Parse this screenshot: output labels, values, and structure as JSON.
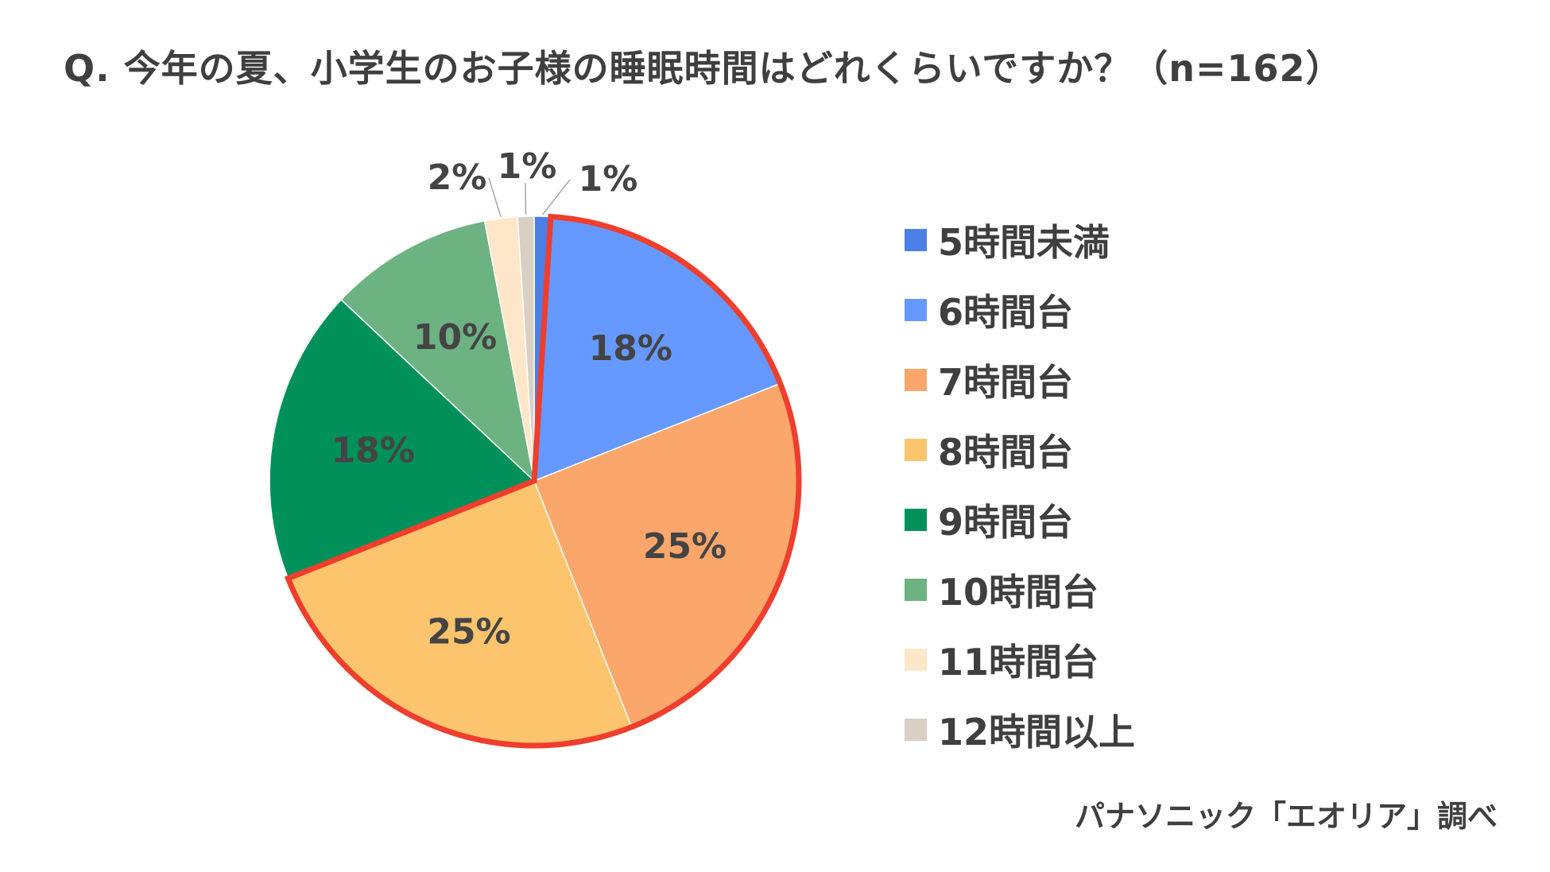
{
  "title": "Q. 今年の夏、小学生のお子様の睡眠時間はどれくらいですか？（n=162）",
  "source": "パナソニック「エオリア」調べ",
  "chart_data": {
    "type": "pie",
    "title": "Q. 今年の夏、小学生のお子様の睡眠時間はどれくらいですか？（n=162）",
    "n": 162,
    "slices": [
      {
        "name": "5時間未満",
        "value": 1,
        "label": "1%",
        "color": "#4a7fe6"
      },
      {
        "name": "6時間台",
        "value": 18,
        "label": "18%",
        "color": "#6699ff"
      },
      {
        "name": "7時間台",
        "value": 25,
        "label": "25%",
        "color": "#fba66b"
      },
      {
        "name": "8時間台",
        "value": 25,
        "label": "25%",
        "color": "#fcc46c"
      },
      {
        "name": "9時間台",
        "value": 18,
        "label": "18%",
        "color": "#00915a"
      },
      {
        "name": "10時間台",
        "value": 10,
        "label": "10%",
        "color": "#6db281"
      },
      {
        "name": "11時間台",
        "value": 2,
        "label": "2%",
        "color": "#fde7c8"
      },
      {
        "name": "12時間以上",
        "value": 1,
        "label": "1%",
        "color": "#d9cfc3"
      }
    ],
    "highlight": {
      "series": [
        "6時間台",
        "7時間台",
        "8時間台"
      ],
      "outline_color": "#ef3e2d"
    },
    "legend_position": "right",
    "start_angle": "12 o'clock, clockwise"
  }
}
